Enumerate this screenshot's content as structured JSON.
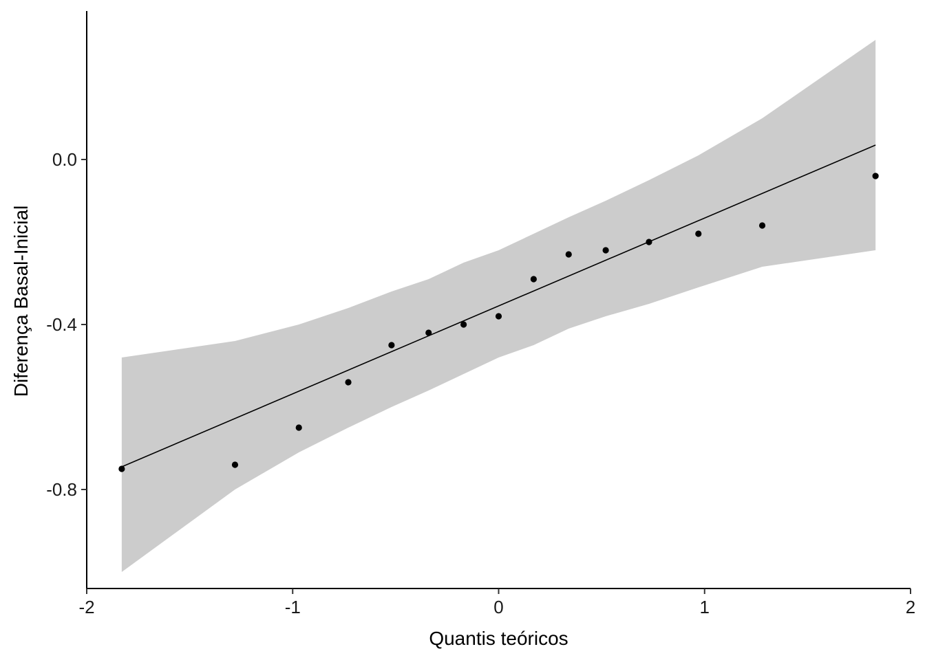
{
  "chart_data": {
    "type": "scatter",
    "title": "",
    "xlabel": "Quantis teóricos",
    "ylabel": "Diferença Basal-Inicial",
    "xlim": [
      -2,
      2
    ],
    "ylim": [
      -1.04,
      0.36
    ],
    "x_ticks": [
      -2,
      -1,
      0,
      1,
      2
    ],
    "x_tick_labels": [
      "-2",
      "-1",
      "0",
      "1",
      "2"
    ],
    "y_ticks": [
      0.0,
      -0.4,
      -0.8
    ],
    "y_tick_labels": [
      "0.0",
      "-0.4",
      "-0.8"
    ],
    "grid": false,
    "legend": "none",
    "colors": {
      "points": "#000000",
      "line": "#000000",
      "band": "#cccccc"
    },
    "points": [
      {
        "x": -1.83,
        "y": -0.75
      },
      {
        "x": -1.28,
        "y": -0.74
      },
      {
        "x": -0.97,
        "y": -0.65
      },
      {
        "x": -0.73,
        "y": -0.54
      },
      {
        "x": -0.52,
        "y": -0.45
      },
      {
        "x": -0.34,
        "y": -0.42
      },
      {
        "x": -0.17,
        "y": -0.4
      },
      {
        "x": 0.0,
        "y": -0.38
      },
      {
        "x": 0.17,
        "y": -0.29
      },
      {
        "x": 0.34,
        "y": -0.23
      },
      {
        "x": 0.52,
        "y": -0.22
      },
      {
        "x": 0.73,
        "y": -0.2
      },
      {
        "x": 0.97,
        "y": -0.18
      },
      {
        "x": 1.28,
        "y": -0.16
      },
      {
        "x": 1.83,
        "y": -0.04
      }
    ],
    "reference_line": {
      "x": [
        -1.83,
        1.83
      ],
      "y": [
        -0.745,
        0.035
      ]
    },
    "confidence_band": {
      "x": [
        -1.83,
        -1.28,
        -0.97,
        -0.73,
        -0.52,
        -0.34,
        -0.17,
        0.0,
        0.17,
        0.34,
        0.52,
        0.73,
        0.97,
        1.28,
        1.83
      ],
      "upper": [
        -0.48,
        -0.44,
        -0.4,
        -0.36,
        -0.32,
        -0.29,
        -0.25,
        -0.22,
        -0.18,
        -0.14,
        -0.1,
        -0.05,
        0.01,
        0.1,
        0.29
      ],
      "lower": [
        -1.0,
        -0.8,
        -0.71,
        -0.65,
        -0.6,
        -0.56,
        -0.52,
        -0.48,
        -0.45,
        -0.41,
        -0.38,
        -0.35,
        -0.31,
        -0.26,
        -0.22
      ]
    }
  }
}
